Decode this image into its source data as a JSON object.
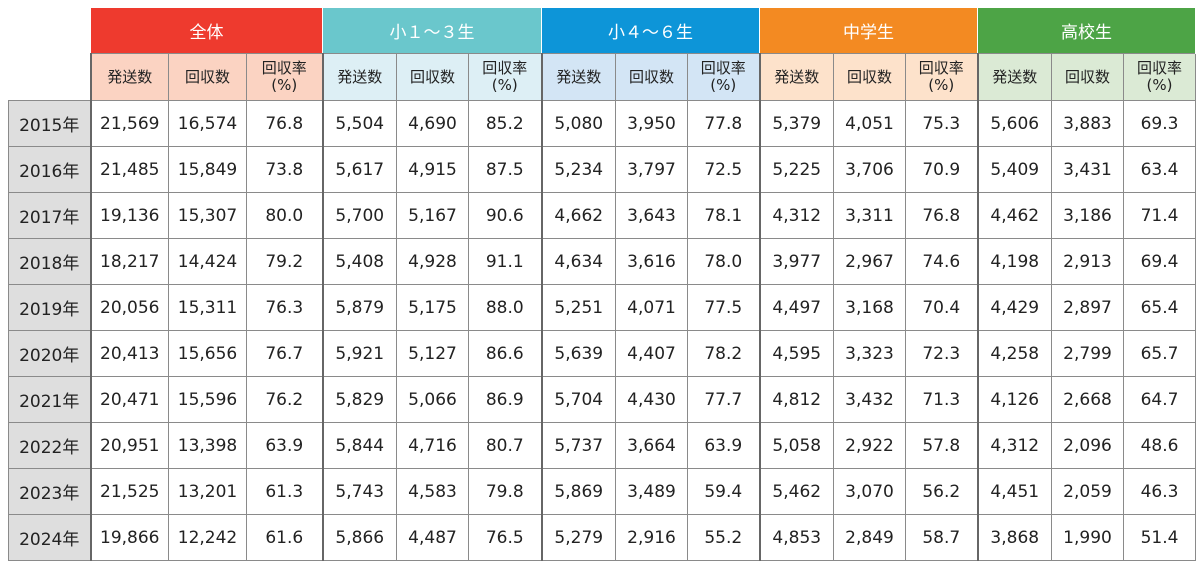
{
  "groups": [
    {
      "label": "全体",
      "color": "#ee3a2e",
      "sub_bg": "#fbd3c2"
    },
    {
      "label": "小１～３生",
      "color": "#6ac7cc",
      "sub_bg": "#ddeff5"
    },
    {
      "label": "小４～６生",
      "color": "#0d95d8",
      "sub_bg": "#d3e5f5"
    },
    {
      "label": "中学生",
      "color": "#f38a22",
      "sub_bg": "#fde2cb"
    },
    {
      "label": "高校生",
      "color": "#4da446",
      "sub_bg": "#dbead5"
    }
  ],
  "subheaders": [
    "発送数",
    "回収数",
    "回収率\n(%)"
  ],
  "rows": [
    {
      "year": "2015年",
      "values": [
        "21,569",
        "16,574",
        "76.8",
        "5,504",
        "4,690",
        "85.2",
        "5,080",
        "3,950",
        "77.8",
        "5,379",
        "4,051",
        "75.3",
        "5,606",
        "3,883",
        "69.3"
      ]
    },
    {
      "year": "2016年",
      "values": [
        "21,485",
        "15,849",
        "73.8",
        "5,617",
        "4,915",
        "87.5",
        "5,234",
        "3,797",
        "72.5",
        "5,225",
        "3,706",
        "70.9",
        "5,409",
        "3,431",
        "63.4"
      ]
    },
    {
      "year": "2017年",
      "values": [
        "19,136",
        "15,307",
        "80.0",
        "5,700",
        "5,167",
        "90.6",
        "4,662",
        "3,643",
        "78.1",
        "4,312",
        "3,311",
        "76.8",
        "4,462",
        "3,186",
        "71.4"
      ]
    },
    {
      "year": "2018年",
      "values": [
        "18,217",
        "14,424",
        "79.2",
        "5,408",
        "4,928",
        "91.1",
        "4,634",
        "3,616",
        "78.0",
        "3,977",
        "2,967",
        "74.6",
        "4,198",
        "2,913",
        "69.4"
      ]
    },
    {
      "year": "2019年",
      "values": [
        "20,056",
        "15,311",
        "76.3",
        "5,879",
        "5,175",
        "88.0",
        "5,251",
        "4,071",
        "77.5",
        "4,497",
        "3,168",
        "70.4",
        "4,429",
        "2,897",
        "65.4"
      ]
    },
    {
      "year": "2020年",
      "values": [
        "20,413",
        "15,656",
        "76.7",
        "5,921",
        "5,127",
        "86.6",
        "5,639",
        "4,407",
        "78.2",
        "4,595",
        "3,323",
        "72.3",
        "4,258",
        "2,799",
        "65.7"
      ]
    },
    {
      "year": "2021年",
      "values": [
        "20,471",
        "15,596",
        "76.2",
        "5,829",
        "5,066",
        "86.9",
        "5,704",
        "4,430",
        "77.7",
        "4,812",
        "3,432",
        "71.3",
        "4,126",
        "2,668",
        "64.7"
      ]
    },
    {
      "year": "2022年",
      "values": [
        "20,951",
        "13,398",
        "63.9",
        "5,844",
        "4,716",
        "80.7",
        "5,737",
        "3,664",
        "63.9",
        "5,058",
        "2,922",
        "57.8",
        "4,312",
        "2,096",
        "48.6"
      ]
    },
    {
      "year": "2023年",
      "values": [
        "21,525",
        "13,201",
        "61.3",
        "5,743",
        "4,583",
        "79.8",
        "5,869",
        "3,489",
        "59.4",
        "5,462",
        "3,070",
        "56.2",
        "4,451",
        "2,059",
        "46.3"
      ]
    },
    {
      "year": "2024年",
      "values": [
        "19,866",
        "12,242",
        "61.6",
        "5,866",
        "4,487",
        "76.5",
        "5,279",
        "2,916",
        "55.2",
        "4,853",
        "2,849",
        "58.7",
        "3,868",
        "1,990",
        "51.4"
      ]
    }
  ]
}
